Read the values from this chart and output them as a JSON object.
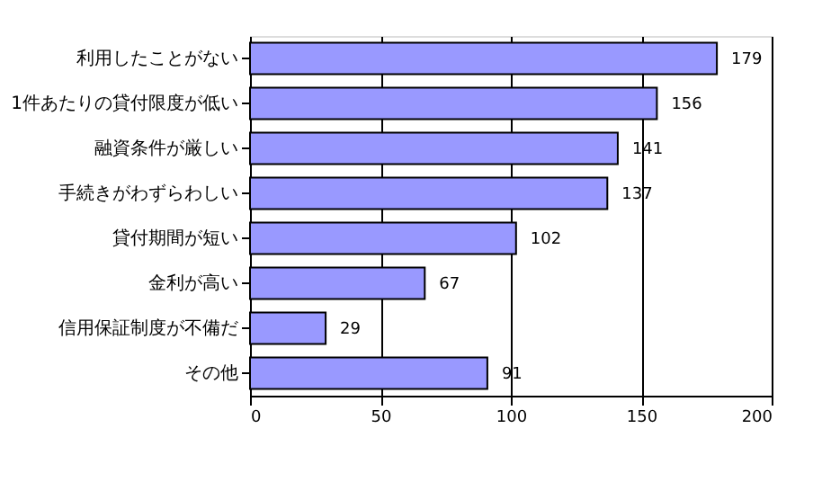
{
  "chart_data": {
    "type": "bar",
    "orientation": "horizontal",
    "categories": [
      "利用したことがない",
      "1件あたりの貸付限度が低い",
      "融資条件が厳しい",
      "手続きがわずらわしい",
      "貸付期間が短い",
      "金利が高い",
      "信用保証制度が不備だ",
      "その他"
    ],
    "values": [
      179,
      156,
      141,
      137,
      102,
      67,
      29,
      91
    ],
    "color": "#9999ff",
    "xlim": [
      0,
      200
    ],
    "xticks": [
      0,
      50,
      100,
      150,
      200
    ],
    "grid": "x",
    "data_labels": true
  }
}
